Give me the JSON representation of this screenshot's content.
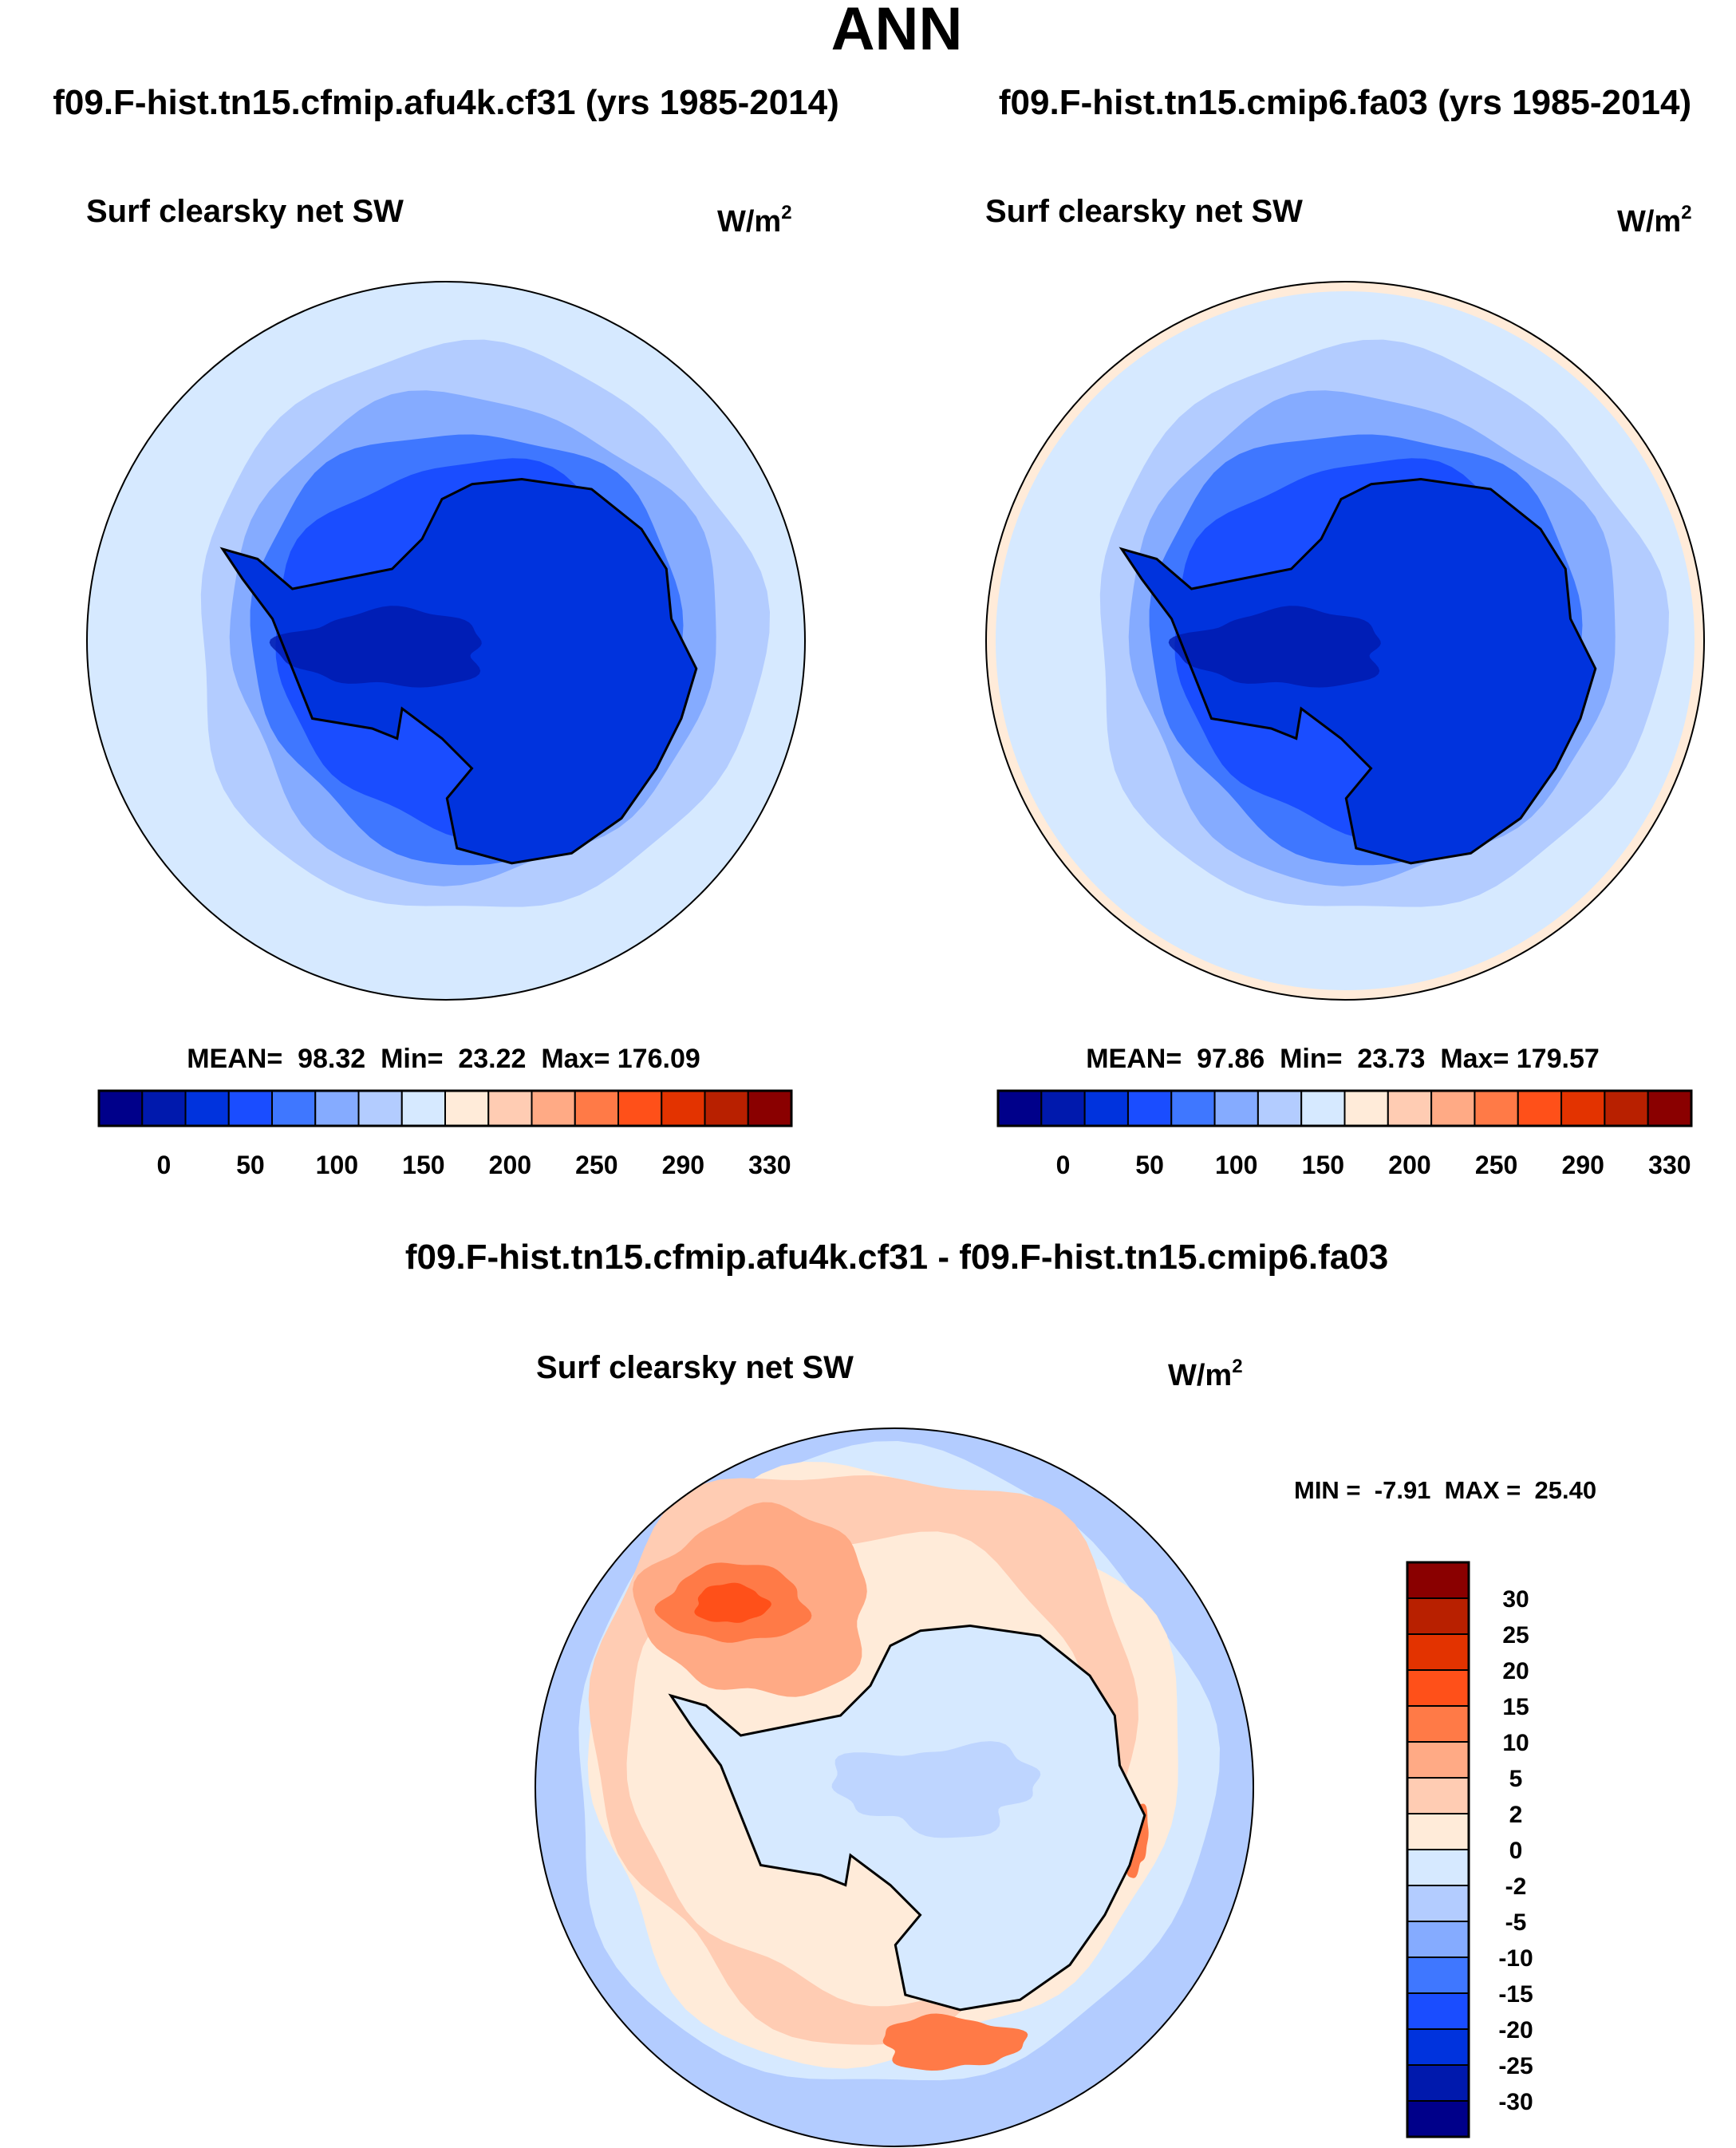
{
  "chart_data": {
    "type": "heatmap",
    "title": "ANN",
    "panels": [
      {
        "case_title": "f09.F-hist.tn15.cfmip.afu4k.cf31 (yrs 1985-2014)",
        "field": "Surf clearsky net SW",
        "units": "W/m",
        "units_sup": "2",
        "stats": "MEAN=  98.32  Min=  23.22  Max= 176.09",
        "mean": 98.32,
        "min": 23.22,
        "max": 176.09,
        "projection": "south polar stereographic",
        "colorbar_labels": [
          "0",
          "50",
          "100",
          "150",
          "200",
          "250",
          "290",
          "330"
        ]
      },
      {
        "case_title": "f09.F-hist.tn15.cmip6.fa03 (yrs 1985-2014)",
        "field": "Surf clearsky net SW",
        "units": "W/m",
        "units_sup": "2",
        "stats": "MEAN=  97.86  Min=  23.73  Max= 179.57",
        "mean": 97.86,
        "min": 23.73,
        "max": 179.57,
        "projection": "south polar stereographic",
        "colorbar_labels": [
          "0",
          "50",
          "100",
          "150",
          "200",
          "250",
          "290",
          "330"
        ]
      },
      {
        "case_title": "f09.F-hist.tn15.cfmip.afu4k.cf31 - f09.F-hist.tn15.cmip6.fa03",
        "field": "Surf clearsky net SW",
        "units": "W/m",
        "units_sup": "2",
        "stats": "MIN =  -7.91  MAX =  25.40",
        "min": -7.91,
        "max": 25.4,
        "projection": "south polar stereographic",
        "colorbar_labels": [
          "30",
          "25",
          "20",
          "15",
          "10",
          "5",
          "2",
          "0",
          "-2",
          "-5",
          "-10",
          "-15",
          "-20",
          "-25",
          "-30"
        ]
      }
    ],
    "colors": [
      "#00008a",
      "#0019ad",
      "#0033dd",
      "#1a4dff",
      "#3f77ff",
      "#85abff",
      "#b3ccff",
      "#d6e9ff",
      "#ffebd9",
      "#ffccb3",
      "#ffaa85",
      "#ff7a47",
      "#ff5019",
      "#e33300",
      "#b82000",
      "#8a0000"
    ]
  }
}
